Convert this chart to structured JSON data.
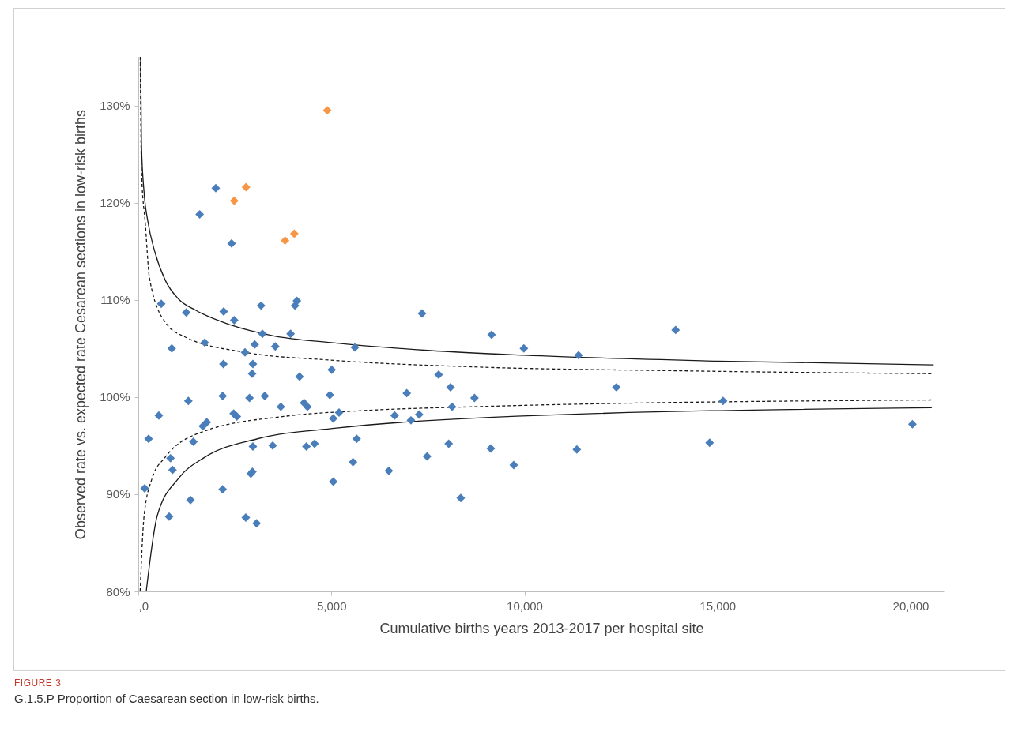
{
  "chart_data": {
    "type": "scatter",
    "xlabel": "Cumulative births years 2013-2017 per hospital site",
    "ylabel": "Observed rate vs. expected rate Cesarean sections in low-risk births",
    "marker": "diamond",
    "grid": false,
    "xlim": [
      0,
      20880
    ],
    "xticks": [
      {
        "value": 0,
        "label": ",0"
      },
      {
        "value": 5000,
        "label": "5,000"
      },
      {
        "value": 10000,
        "label": "10,000"
      },
      {
        "value": 15000,
        "label": "15,000"
      },
      {
        "value": 20000,
        "label": "20,000"
      }
    ],
    "ylim": [
      80,
      135
    ],
    "yticks": [
      {
        "value": 80,
        "label": "80%"
      },
      {
        "value": 90,
        "label": "90%"
      },
      {
        "value": 100,
        "label": "100%"
      },
      {
        "value": 110,
        "label": "110%"
      },
      {
        "value": 120,
        "label": "120%"
      },
      {
        "value": 130,
        "label": "130%"
      }
    ],
    "series": [
      {
        "type": "line",
        "marker": "none",
        "line_style": "solid",
        "color": "#1a1a1a",
        "x": [
          60,
          82,
          150,
          250,
          423,
          700,
          1037,
          1500,
          2400,
          3500,
          5000,
          7500,
          10000,
          15000,
          20600
        ],
        "values": [
          135,
          125.9,
          121,
          118,
          115,
          112,
          110.1,
          108.9,
          107.4,
          106.3,
          105.6,
          104.8,
          104.3,
          103.7,
          103.3
        ]
      },
      {
        "type": "line",
        "marker": "none",
        "line_style": "dashed",
        "color": "#1a1a1a",
        "x": [
          50,
          82,
          184,
          287,
          696,
          1200,
          2764,
          4961,
          8680,
          14000,
          20550
        ],
        "values": [
          135,
          123.2,
          117.7,
          112.3,
          107.7,
          106.2,
          104.6,
          103.8,
          103.1,
          102.7,
          102.4
        ]
      },
      {
        "type": "line",
        "marker": "none",
        "line_style": "dashed",
        "color": "#1a1a1a",
        "x": [
          47,
          150,
          354,
          696,
          1720,
          3767,
          5814,
          8680,
          20550
        ],
        "values": [
          80,
          87.8,
          91.6,
          93.8,
          96.5,
          98,
          98.6,
          99,
          99.7
        ]
      },
      {
        "type": "line",
        "marker": "none",
        "line_style": "solid",
        "color": "#1a1a1a",
        "x": [
          205,
          491,
          1037,
          1720,
          3085,
          5132,
          9089,
          20550
        ],
        "values": [
          80,
          87.8,
          91.6,
          93.8,
          95.7,
          96.8,
          97.9,
          98.9
        ]
      },
      {
        "color": "#4a7ebb",
        "x": [
          866,
          1720,
          2764,
          3016,
          3548,
          3214,
          3944,
          5609,
          2204,
          2968,
          2948,
          4176,
          5009,
          7779,
          8086,
          6954,
          8707,
          1296,
          2184,
          2880,
          3275,
          4961,
          532,
          3691,
          4292,
          4381,
          2470,
          2552,
          5200,
          5050,
          6639,
          7274,
          7062,
          8127,
          1774,
          1672,
          266,
          1426,
          2968,
          3480,
          4354,
          4565,
          5656,
          8039,
          7480,
          5561,
          6489,
          833,
          887,
          2914,
          2955,
          5050,
          164,
          2184,
          1351,
          8352,
          798,
          2784,
          3064,
          2006,
          1590,
          2416,
          594,
          1242,
          2211,
          2484,
          3180,
          4108,
          4059,
          7349,
          9150,
          9986,
          11402,
          13916,
          12381,
          15145,
          20049,
          9130,
          9724,
          11357,
          14797
        ],
        "values": [
          105.0,
          105.6,
          104.6,
          105.4,
          105.2,
          106.5,
          106.5,
          105.1,
          103.4,
          103.4,
          102.4,
          102.1,
          102.8,
          102.3,
          101.0,
          100.4,
          99.9,
          99.6,
          100.1,
          99.9,
          100.1,
          100.2,
          98.1,
          99.0,
          99.4,
          99.0,
          98.3,
          98.0,
          98.4,
          97.8,
          98.1,
          98.2,
          97.6,
          99.0,
          97.4,
          97.0,
          95.7,
          95.4,
          94.9,
          95.0,
          94.9,
          95.2,
          95.7,
          95.2,
          93.9,
          93.3,
          92.4,
          93.7,
          92.5,
          92.1,
          92.3,
          91.3,
          90.6,
          90.5,
          89.4,
          89.6,
          87.7,
          87.6,
          87.0,
          121.5,
          118.8,
          115.8,
          109.6,
          108.7,
          108.8,
          107.9,
          109.4,
          109.9,
          109.4,
          108.6,
          106.4,
          105.0,
          104.3,
          106.9,
          101.0,
          99.6,
          97.2,
          94.7,
          93.0,
          94.6,
          95.3
        ]
      },
      {
        "color": "#f79646",
        "x": [
          4893,
          2790,
          2484,
          4040,
          3801
        ],
        "values": [
          129.5,
          121.6,
          120.2,
          116.8,
          116.1
        ]
      }
    ],
    "annotations": [
      "FIGURE 3",
      "G.1.5.P Proportion of Caesarean section in low-risk births."
    ]
  }
}
